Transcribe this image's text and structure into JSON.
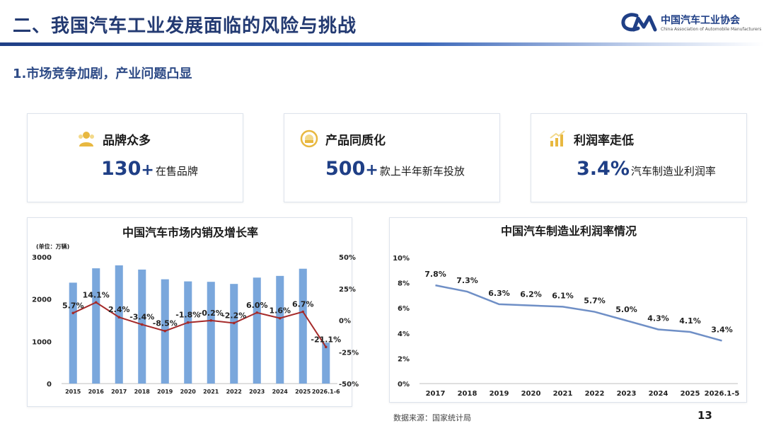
{
  "header": {
    "title": "二、我国汽车工业发展面临的风险与挑战",
    "logo_cn": "中国汽车工业协会",
    "logo_en": "China Association of Automobile Manufacturers"
  },
  "subtitle": "1.市场竞争加剧，产业问题凸显",
  "cards": [
    {
      "label": "品牌众多",
      "value": "130",
      "plus": "+",
      "desc": "在售品牌",
      "icon": "people-icon"
    },
    {
      "label": "产品同质化",
      "value": "500",
      "plus": "+",
      "desc": "款上半年新车投放",
      "icon": "circle-target-icon"
    },
    {
      "label": "利润率走低",
      "value": "3.4%",
      "plus": "",
      "desc": "汽车制造业利润率",
      "icon": "bar-growth-icon"
    }
  ],
  "colors": {
    "brand": "#1f3f86",
    "bar": "#7aa7dc",
    "growth_line": "#a52a2a",
    "profit_line": "#6f8fc6"
  },
  "chart_data": [
    {
      "type": "bar",
      "title": "中国汽车市场内销及增长率",
      "unit_label": "(单位：万辆)",
      "categories": [
        "2015",
        "2016",
        "2017",
        "2018",
        "2019",
        "2020",
        "2021",
        "2022",
        "2023",
        "2024",
        "2025",
        "2026.1-6"
      ],
      "series": [
        {
          "axis": "left",
          "type": "bar",
          "values": [
            2390,
            2730,
            2800,
            2700,
            2470,
            2420,
            2410,
            2360,
            2510,
            2550,
            2720,
            970
          ]
        },
        {
          "axis": "right",
          "type": "line",
          "values": [
            5.7,
            14.1,
            2.4,
            -3.4,
            -8.5,
            -1.8,
            -0.2,
            -2.2,
            6.0,
            1.6,
            6.7,
            -21.1
          ],
          "labels": [
            "5.7%",
            "14.1%",
            "2.4%",
            "-3.4%",
            "-8.5%",
            "-1.8%",
            "-0.2%",
            "-2.2%",
            "6.0%",
            "1.6%",
            "6.7%",
            "-21.1%"
          ]
        }
      ],
      "ylim_left": [
        0,
        3000
      ],
      "yticks_left": [
        "0",
        "1000",
        "2000",
        "3000"
      ],
      "ylim_right": [
        -50,
        50
      ],
      "yticks_right": [
        "-50%",
        "-25%",
        "0%",
        "25%",
        "50%"
      ]
    },
    {
      "type": "line",
      "title": "中国汽车制造业利润率情况",
      "x": [
        "2017",
        "2018",
        "2019",
        "2020",
        "2021",
        "2022",
        "2023",
        "2024",
        "2025",
        "2026.1-5"
      ],
      "series": [
        {
          "values": [
            7.8,
            7.3,
            6.3,
            6.2,
            6.1,
            5.7,
            5.0,
            4.3,
            4.1,
            3.4
          ],
          "labels": [
            "7.8%",
            "7.3%",
            "6.3%",
            "6.2%",
            "6.1%",
            "5.7%",
            "5.0%",
            "4.3%",
            "4.1%",
            "3.4%"
          ]
        }
      ],
      "ylim": [
        0,
        10
      ],
      "yticks": [
        "0%",
        "2%",
        "4%",
        "6%",
        "8%",
        "10%"
      ]
    }
  ],
  "footer": {
    "source": "数据来源：国家统计局",
    "page": "13"
  }
}
